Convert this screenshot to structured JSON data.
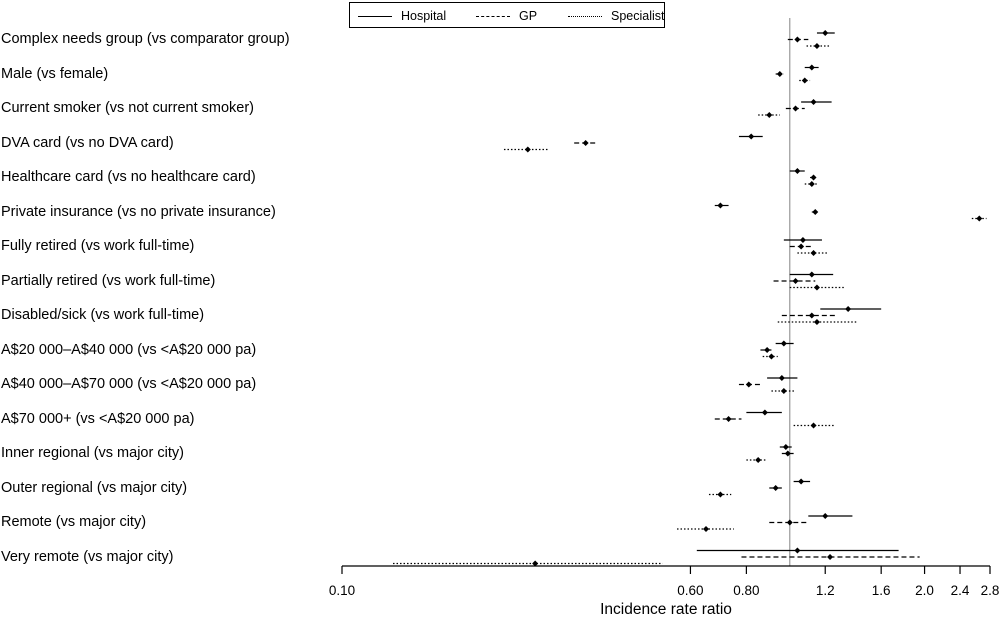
{
  "chart_data": {
    "type": "forest",
    "xlabel": "Incidence rate ratio",
    "xscale": "log",
    "xlim": [
      0.1,
      2.8
    ],
    "xticks": [
      "0.10",
      "0.60",
      "0.80",
      "1.2",
      "1.6",
      "2.0",
      "2.4",
      "2.8"
    ],
    "reference_line": 1.0,
    "legend": [
      "Hospital",
      "GP",
      "Specialist"
    ],
    "legend_position": "top",
    "rows": [
      {
        "label": "Complex needs group (vs comparator group)",
        "hospital": [
          1.2,
          1.15,
          1.26
        ],
        "gp": [
          1.04,
          0.99,
          1.1
        ],
        "specialist": [
          1.15,
          1.09,
          1.23
        ]
      },
      {
        "label": "Male (vs female)",
        "hospital": [
          1.12,
          1.08,
          1.16
        ],
        "gp": [
          0.95,
          0.93,
          0.97
        ],
        "specialist": [
          1.08,
          1.05,
          1.11
        ]
      },
      {
        "label": "Current smoker (vs not current smoker)",
        "hospital": [
          1.13,
          1.06,
          1.24
        ],
        "gp": [
          1.03,
          0.98,
          1.08
        ],
        "specialist": [
          0.9,
          0.85,
          0.95
        ]
      },
      {
        "label": "DVA card (vs no DVA card)",
        "hospital": [
          0.82,
          0.77,
          0.87
        ],
        "gp": [
          0.35,
          0.33,
          0.37
        ],
        "specialist": [
          0.26,
          0.23,
          0.29
        ]
      },
      {
        "label": "Healthcare card (vs no healthcare card)",
        "hospital": [
          1.04,
          1.0,
          1.08
        ],
        "gp": [
          1.13,
          1.11,
          1.15
        ],
        "specialist": [
          1.12,
          1.08,
          1.16
        ]
      },
      {
        "label": "Private insurance (vs no private insurance)",
        "hospital": [
          0.7,
          0.68,
          0.73
        ],
        "gp": [
          1.14,
          1.12,
          1.16
        ],
        "specialist": [
          2.65,
          2.55,
          2.75
        ]
      },
      {
        "label": "Fully retired (vs work full-time)",
        "hospital": [
          1.07,
          0.97,
          1.18
        ],
        "gp": [
          1.06,
          1.0,
          1.12
        ],
        "specialist": [
          1.13,
          1.04,
          1.22
        ]
      },
      {
        "label": "Partially retired (vs work full-time)",
        "hospital": [
          1.12,
          1.0,
          1.25
        ],
        "gp": [
          1.03,
          0.92,
          1.14
        ],
        "specialist": [
          1.15,
          1.0,
          1.32
        ]
      },
      {
        "label": "Disabled/sick (vs work full-time)",
        "hospital": [
          1.35,
          1.17,
          1.6
        ],
        "gp": [
          1.12,
          0.96,
          1.27
        ],
        "specialist": [
          1.15,
          0.94,
          1.42
        ]
      },
      {
        "label": "A$20 000–A$40 000 (vs <A$20 000 pa)",
        "hospital": [
          0.97,
          0.93,
          1.02
        ],
        "gp": [
          0.89,
          0.86,
          0.91
        ],
        "specialist": [
          0.91,
          0.87,
          0.94
        ]
      },
      {
        "label": "A$40 000–A$70 000 (vs <A$20 000 pa)",
        "hospital": [
          0.96,
          0.89,
          1.04
        ],
        "gp": [
          0.81,
          0.77,
          0.86
        ],
        "specialist": [
          0.97,
          0.91,
          1.03
        ]
      },
      {
        "label": "A$70 000+ (vs <A$20 000 pa)",
        "hospital": [
          0.88,
          0.8,
          0.96
        ],
        "gp": [
          0.73,
          0.68,
          0.78
        ],
        "specialist": [
          1.13,
          1.02,
          1.26
        ]
      },
      {
        "label": "Inner regional (vs major city)",
        "hospital": [
          0.98,
          0.95,
          1.01
        ],
        "gp": [
          0.99,
          0.96,
          1.02
        ],
        "specialist": [
          0.85,
          0.8,
          0.89
        ]
      },
      {
        "label": "Outer regional (vs major city)",
        "hospital": [
          1.06,
          1.02,
          1.11
        ],
        "gp": [
          0.93,
          0.9,
          0.96
        ],
        "specialist": [
          0.7,
          0.66,
          0.74
        ]
      },
      {
        "label": "Remote (vs major city)",
        "hospital": [
          1.2,
          1.1,
          1.38
        ],
        "gp": [
          1.0,
          0.9,
          1.1
        ],
        "specialist": [
          0.65,
          0.56,
          0.75
        ]
      },
      {
        "label": "Very remote (vs major city)",
        "hospital": [
          1.04,
          0.62,
          1.75
        ],
        "gp": [
          1.23,
          0.78,
          1.95
        ],
        "specialist": [
          0.27,
          0.13,
          0.52
        ]
      }
    ]
  }
}
